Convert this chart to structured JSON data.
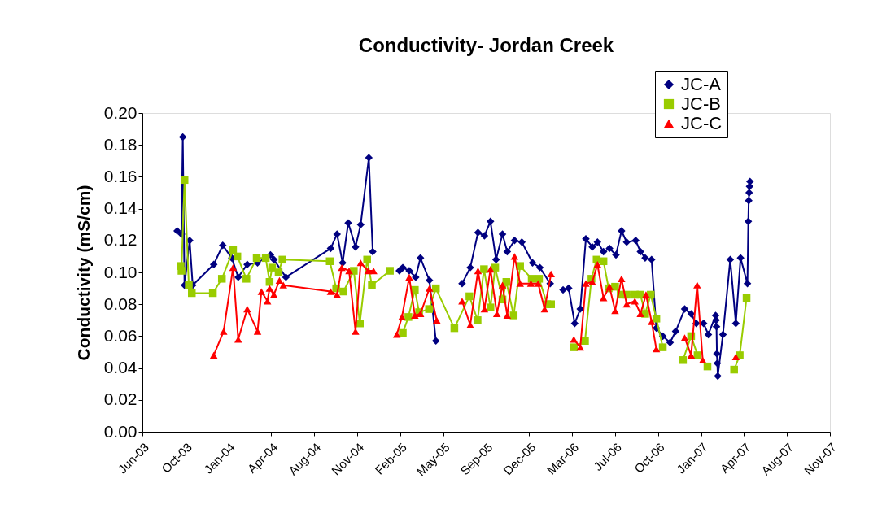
{
  "chart_data": {
    "type": "line",
    "title": "Conductivity- Jordan Creek",
    "ylabel": "Conductivity (mS/cm)",
    "ylim": [
      0,
      0.2
    ],
    "yticks": [
      {
        "value": 0,
        "label": "0.00"
      },
      {
        "value": 0.02,
        "label": "0.02"
      },
      {
        "value": 0.04,
        "label": "0.04"
      },
      {
        "value": 0.06,
        "label": "0.06"
      },
      {
        "value": 0.08,
        "label": "0.08"
      },
      {
        "value": 0.1,
        "label": "0.10"
      },
      {
        "value": 0.12,
        "label": "0.12"
      },
      {
        "value": 0.14,
        "label": "0.14"
      },
      {
        "value": 0.16,
        "label": "0.16"
      },
      {
        "value": 0.18,
        "label": "0.18"
      },
      {
        "value": 0.2,
        "label": "0.20"
      }
    ],
    "xlim": [
      "2003-06-29",
      "2007-11-15"
    ],
    "xticks": [
      {
        "value": "2003-06-29",
        "label": "Jun-03"
      },
      {
        "value": "2003-10-07",
        "label": "Oct-03"
      },
      {
        "value": "2004-01-15",
        "label": "Jan-04"
      },
      {
        "value": "2004-04-24",
        "label": "Apr-04"
      },
      {
        "value": "2004-08-02",
        "label": "Aug-04"
      },
      {
        "value": "2004-11-10",
        "label": "Nov-04"
      },
      {
        "value": "2005-02-18",
        "label": "Feb-05"
      },
      {
        "value": "2005-05-29",
        "label": "May-05"
      },
      {
        "value": "2005-09-06",
        "label": "Sep-05"
      },
      {
        "value": "2005-12-15",
        "label": "Dec-05"
      },
      {
        "value": "2006-03-25",
        "label": "Mar-06"
      },
      {
        "value": "2006-07-03",
        "label": "Jul-06"
      },
      {
        "value": "2006-10-11",
        "label": "Oct-06"
      },
      {
        "value": "2007-01-19",
        "label": "Jan-07"
      },
      {
        "value": "2007-04-29",
        "label": "Apr-07"
      },
      {
        "value": "2007-08-07",
        "label": "Aug-07"
      },
      {
        "value": "2007-11-15",
        "label": "Nov-07"
      }
    ],
    "grid": false,
    "legend": "top right",
    "line_style": "solid",
    "series": [
      {
        "name": "JC-A",
        "color": "#000080",
        "marker": "diamond",
        "x": [
          "2003-09-18",
          "2003-09-28",
          "2003-10-01",
          "2003-10-05",
          "2003-10-17",
          "2003-10-24",
          "2003-12-12",
          "2004-01-02",
          "2004-01-23",
          "2004-02-07",
          "2004-02-28",
          "2004-03-23",
          "2004-04-22",
          "2004-04-30",
          "2004-05-28",
          "2004-09-09",
          "2004-09-24",
          "2004-10-07",
          "2004-10-20",
          "2004-11-06",
          "2004-11-18",
          "2004-12-07",
          "2004-12-16",
          "2005-01-15",
          "2005-02-16",
          "2005-02-24",
          "2005-03-11",
          "2005-03-26",
          "2005-04-06",
          "2005-04-27",
          "2005-05-12",
          "2005-06-12",
          "2005-07-12",
          "2005-07-31",
          "2005-08-18",
          "2005-09-02",
          "2005-09-16",
          "2005-09-29",
          "2005-10-14",
          "2005-10-25",
          "2005-11-11",
          "2005-11-28",
          "2005-12-23",
          "2006-01-09",
          "2006-02-02",
          "2006-02-17",
          "2006-03-04",
          "2006-03-17",
          "2006-03-31",
          "2006-04-13",
          "2006-04-26",
          "2006-05-11",
          "2006-05-23",
          "2006-06-06",
          "2006-06-20",
          "2006-07-05",
          "2006-07-18",
          "2006-07-30",
          "2006-08-20",
          "2006-08-31",
          "2006-09-11",
          "2006-09-26",
          "2006-10-07",
          "2006-10-22",
          "2006-11-08",
          "2006-11-21",
          "2006-12-12",
          "2006-12-27",
          "2007-01-08",
          "2007-01-25",
          "2007-02-05",
          "2007-02-22",
          "2007-02-23",
          "2007-02-24",
          "2007-02-25",
          "2007-02-26",
          "2007-02-27",
          "2007-03-11",
          "2007-03-28",
          "2007-04-10",
          "2007-04-21",
          "2007-05-07",
          "2007-05-09",
          "2007-05-10",
          "2007-05-11",
          "2007-05-12",
          "2007-05-13"
        ],
        "values": [
          0.126,
          0.124,
          0.185,
          0.092,
          0.12,
          0.092,
          0.105,
          0.117,
          0.109,
          0.097,
          0.105,
          0.106,
          0.111,
          0.108,
          0.097,
          0.115,
          0.124,
          0.106,
          0.131,
          0.116,
          0.13,
          0.172,
          0.113,
          null,
          0.101,
          0.103,
          0.101,
          0.097,
          0.109,
          0.095,
          0.057,
          null,
          0.093,
          0.103,
          0.125,
          0.123,
          0.132,
          0.108,
          0.124,
          0.113,
          0.12,
          0.119,
          0.106,
          0.103,
          0.093,
          null,
          0.089,
          0.09,
          0.068,
          0.077,
          0.121,
          0.116,
          0.119,
          0.113,
          0.115,
          0.111,
          0.126,
          0.119,
          0.12,
          0.113,
          0.109,
          0.108,
          0.065,
          0.06,
          0.056,
          0.063,
          0.077,
          0.074,
          0.068,
          0.068,
          0.061,
          0.073,
          0.07,
          0.066,
          0.049,
          0.043,
          0.035,
          0.061,
          0.108,
          0.068,
          0.109,
          0.093,
          0.132,
          0.145,
          0.15,
          0.154,
          0.157
        ]
      },
      {
        "name": "JC-B",
        "color": "#99cc00",
        "marker": "square",
        "x": [
          "2003-09-26",
          "2003-09-28",
          "2003-10-05",
          "2003-10-15",
          "2003-10-22",
          "2003-12-10",
          "2003-12-31",
          "2004-01-26",
          "2004-02-05",
          "2004-02-26",
          "2004-03-21",
          "2004-04-11",
          "2004-04-20",
          "2004-04-26",
          "2004-05-11",
          "2004-05-20",
          "2004-09-07",
          "2004-09-22",
          "2004-10-09",
          "2004-11-02",
          "2004-11-16",
          "2004-12-03",
          "2004-12-14",
          "2005-01-25",
          "2005-02-09",
          "2005-02-24",
          "2005-03-09",
          "2005-03-24",
          "2005-04-03",
          "2005-04-26",
          "2005-05-12",
          "2005-06-24",
          "2005-07-29",
          "2005-08-17",
          "2005-09-01",
          "2005-09-16",
          "2005-09-27",
          "2005-10-14",
          "2005-10-23",
          "2005-11-09",
          "2005-11-24",
          "2005-12-21",
          "2006-01-07",
          "2006-01-26",
          "2006-02-04",
          "2006-03-15",
          "2006-03-29",
          "2006-04-24",
          "2006-05-09",
          "2006-05-21",
          "2006-06-06",
          "2006-06-18",
          "2006-07-03",
          "2006-07-16",
          "2006-07-30",
          "2006-08-18",
          "2006-08-31",
          "2006-09-11",
          "2006-09-24",
          "2006-10-07",
          "2006-10-22",
          "2006-11-15",
          "2006-12-08",
          "2006-12-27",
          "2007-01-11",
          "2007-02-03",
          "2007-03-05",
          "2007-04-06",
          "2007-04-19",
          "2007-05-05"
        ],
        "values": [
          0.104,
          0.101,
          0.158,
          0.092,
          0.087,
          0.087,
          0.096,
          0.114,
          0.11,
          0.096,
          0.109,
          0.109,
          0.094,
          0.103,
          0.1,
          0.108,
          0.107,
          0.09,
          0.088,
          0.101,
          0.068,
          0.108,
          0.092,
          0.101,
          null,
          0.062,
          0.072,
          0.089,
          0.075,
          0.077,
          0.09,
          0.065,
          0.085,
          0.07,
          0.102,
          0.078,
          0.103,
          0.083,
          0.094,
          0.073,
          0.104,
          0.096,
          0.096,
          0.08,
          0.08,
          null,
          0.053,
          0.057,
          0.096,
          0.108,
          0.107,
          0.09,
          0.091,
          0.086,
          0.086,
          0.086,
          0.086,
          0.074,
          0.086,
          0.071,
          0.053,
          null,
          0.045,
          0.06,
          0.048,
          0.041,
          null,
          0.039,
          0.048,
          0.084
        ]
      },
      {
        "name": "JC-C",
        "color": "#ff0000",
        "marker": "triangle",
        "x": [
          "2003-12-12",
          "2004-01-04",
          "2004-01-26",
          "2004-02-07",
          "2004-02-28",
          "2004-03-23",
          "2004-04-01",
          "2004-04-15",
          "2004-04-20",
          "2004-04-30",
          "2004-05-13",
          "2004-05-22",
          "2004-09-09",
          "2004-09-24",
          "2004-10-05",
          "2004-10-22",
          "2004-11-06",
          "2004-11-18",
          "2004-12-05",
          "2004-12-18",
          "2005-01-20",
          "2005-02-10",
          "2005-02-22",
          "2005-03-11",
          "2005-03-24",
          "2005-04-06",
          "2005-04-27",
          "2005-05-14",
          "2005-06-15",
          "2005-07-12",
          "2005-07-31",
          "2005-08-18",
          "2005-09-02",
          "2005-09-16",
          "2005-10-01",
          "2005-10-14",
          "2005-10-25",
          "2005-11-11",
          "2005-11-24",
          "2005-12-19",
          "2006-01-05",
          "2006-01-20",
          "2006-02-04",
          "2006-03-15",
          "2006-03-29",
          "2006-04-13",
          "2006-04-26",
          "2006-05-11",
          "2006-05-23",
          "2006-06-06",
          "2006-06-20",
          "2006-07-03",
          "2006-07-18",
          "2006-07-30",
          "2006-08-18",
          "2006-08-31",
          "2006-09-13",
          "2006-09-26",
          "2006-10-07",
          "2006-11-20",
          "2006-12-12",
          "2006-12-27",
          "2007-01-10",
          "2007-01-23",
          "2007-03-01",
          "2007-04-10"
        ],
        "values": [
          0.048,
          0.063,
          0.103,
          0.058,
          0.077,
          0.063,
          0.088,
          0.082,
          0.09,
          0.086,
          0.095,
          0.092,
          0.088,
          0.086,
          0.103,
          0.101,
          0.063,
          0.106,
          0.101,
          0.101,
          null,
          0.061,
          0.072,
          0.097,
          0.073,
          0.074,
          0.09,
          0.07,
          null,
          0.082,
          0.067,
          0.101,
          0.077,
          0.102,
          0.074,
          0.092,
          0.073,
          0.11,
          0.093,
          0.093,
          0.093,
          0.077,
          0.099,
          null,
          0.058,
          0.053,
          0.093,
          0.094,
          0.105,
          0.084,
          0.091,
          0.076,
          0.096,
          0.08,
          0.082,
          0.074,
          0.086,
          0.069,
          0.052,
          null,
          0.059,
          0.048,
          0.092,
          0.045,
          null,
          0.047
        ]
      }
    ]
  }
}
